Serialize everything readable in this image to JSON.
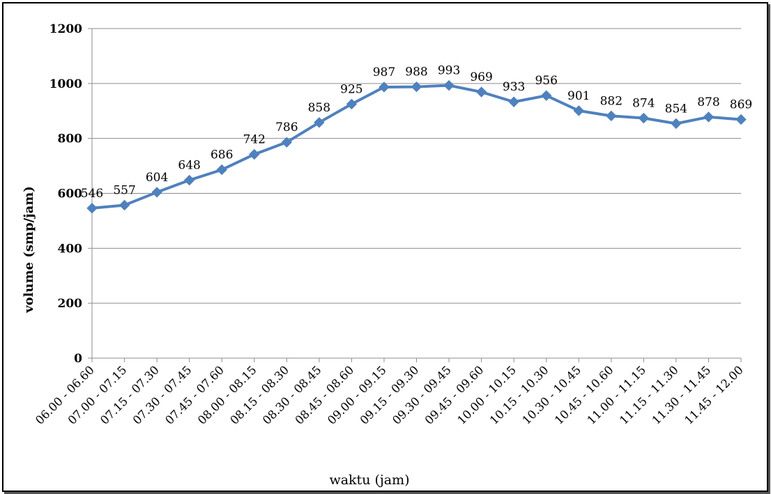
{
  "chart_data": {
    "type": "line",
    "title": "",
    "xlabel": "waktu (jam)",
    "ylabel": "volume (smp/jam)",
    "ylim": [
      0,
      1200
    ],
    "yticks": [
      0,
      200,
      400,
      600,
      800,
      1000,
      1200
    ],
    "grid": true,
    "legend": "none",
    "categories": [
      "06.00 - 06.60",
      "07.00 - 07.15",
      "07.15 - 07.30",
      "07.30 - 07.45",
      "07.45 - 07.60",
      "08.00 - 08.15",
      "08.15 - 08.30",
      "08.30 - 08.45",
      "08.45 - 08.60",
      "09.00 - 09.15",
      "09.15 - 09.30",
      "09.30 - 09.45",
      "09.45 - 09.60",
      "10.00 - 10.15",
      "10.15 - 10.30",
      "10.30 - 10.45",
      "10.45 - 10.60",
      "11.00 - 11.15",
      "11.15 - 11.30",
      "11.30 - 11.45",
      "11.45 - 12.00"
    ],
    "series": [
      {
        "values": [
          546,
          557,
          604,
          648,
          686,
          742,
          786,
          858,
          925,
          987,
          988,
          993,
          969,
          933,
          956,
          901,
          882,
          874,
          854,
          878,
          869
        ],
        "color": "#4f81bd",
        "marker": "diamond"
      }
    ]
  }
}
